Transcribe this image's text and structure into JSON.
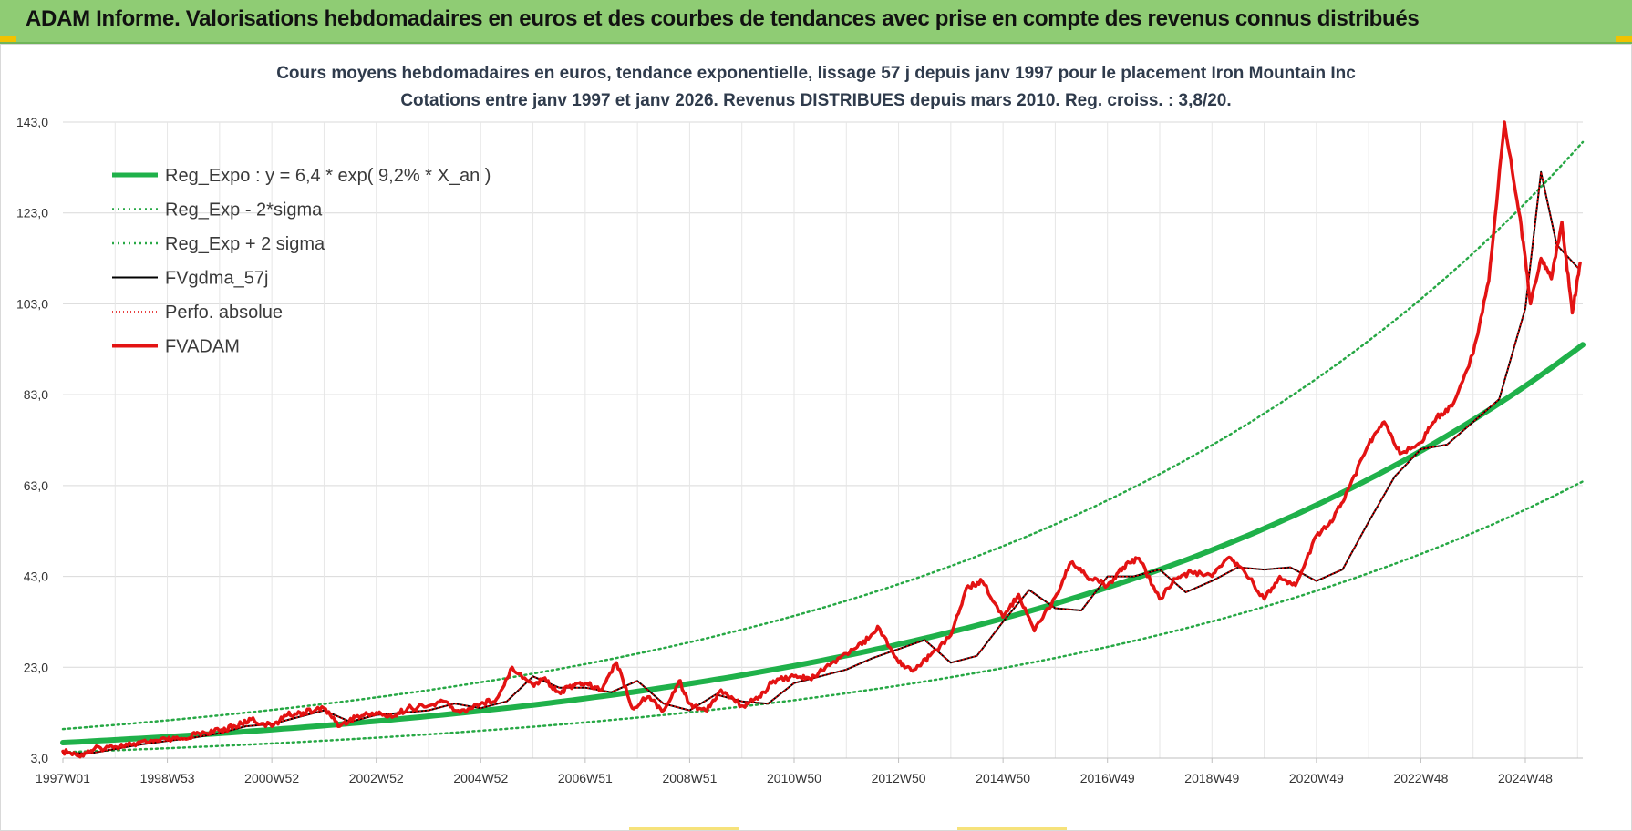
{
  "header": {
    "title": "ADAM Informe. Valorisations hebdomadaires en euros et des courbes de tendances avec prise en compte des revenus connus distribués"
  },
  "colors": {
    "header_bg": "#8fcc74",
    "reg": "#1fb14a",
    "sigma": "#27a845",
    "fvgdma": "#000000",
    "perfo": "#e00000",
    "fvadam": "#e31313"
  },
  "chart_data": {
    "type": "line",
    "title": "Cours moyens hebdomadaires en euros, tendance exponentielle, lissage 57 j depuis janv 1997 pour le placement Iron Mountain Inc",
    "subtitle": "Cotations entre janv 1997 et janv 2026. Revenus DISTRIBUES depuis mars 2010. Reg. croiss. : 3,8/20.",
    "xlabel": "",
    "ylabel": "",
    "xlim": [
      1997.0,
      2026.1
    ],
    "ylim": [
      3,
      143
    ],
    "y_ticks": [
      "3,0",
      "23,0",
      "43,0",
      "63,0",
      "83,0",
      "103,0",
      "123,0",
      "143,0"
    ],
    "x_ticks": [
      {
        "label": "1997W01",
        "x": 1997.0
      },
      {
        "label": "1998W53",
        "x": 1999.0
      },
      {
        "label": "2000W52",
        "x": 2001.0
      },
      {
        "label": "2002W52",
        "x": 2003.0
      },
      {
        "label": "2004W52",
        "x": 2005.0
      },
      {
        "label": "2006W51",
        "x": 2007.0
      },
      {
        "label": "2008W51",
        "x": 2009.0
      },
      {
        "label": "2010W50",
        "x": 2011.0
      },
      {
        "label": "2012W50",
        "x": 2013.0
      },
      {
        "label": "2014W50",
        "x": 2015.0
      },
      {
        "label": "2016W49",
        "x": 2017.0
      },
      {
        "label": "2018W49",
        "x": 2019.0
      },
      {
        "label": "2020W49",
        "x": 2021.0
      },
      {
        "label": "2022W48",
        "x": 2023.0
      },
      {
        "label": "2024W48",
        "x": 2025.0
      }
    ],
    "grid": true,
    "legend": {
      "placement": "top-left"
    },
    "series": [
      {
        "name": "Reg_Expo : y = 6,4 * exp( 9,2% *  X_an )",
        "style": "thick-solid",
        "color": "#1fb14a",
        "x": [
          1997.0,
          2000,
          2003,
          2006,
          2009,
          2012,
          2015,
          2018,
          2021,
          2023,
          2025,
          2026.1
        ],
        "values": [
          6.4,
          8.4,
          11.1,
          14.7,
          19.5,
          25.6,
          33.8,
          44.6,
          58.8,
          70.6,
          84.9,
          94.0
        ]
      },
      {
        "name": "Reg_Exp - 2*sigma",
        "style": "dotted",
        "color": "#27a845",
        "x": [
          1997.0,
          2000,
          2003,
          2006,
          2009,
          2012,
          2015,
          2018,
          2021,
          2023,
          2025,
          2026.1
        ],
        "values": [
          4.3,
          5.7,
          7.5,
          10.0,
          13.2,
          17.4,
          23.0,
          30.3,
          40.0,
          48.0,
          57.7,
          63.9
        ]
      },
      {
        "name": "Reg_Exp + 2 sigma",
        "style": "dotted",
        "color": "#27a845",
        "x": [
          1997.0,
          2000,
          2003,
          2006,
          2009,
          2012,
          2015,
          2018,
          2021,
          2023,
          2025,
          2026.1
        ],
        "values": [
          9.4,
          12.4,
          16.4,
          21.6,
          28.6,
          37.7,
          49.8,
          65.6,
          86.6,
          103.9,
          124.8,
          138.6
        ]
      },
      {
        "name": "FVgdma_57j",
        "style": "thin-solid",
        "color": "#000000",
        "x": [
          1997.0,
          1997.5,
          1998.0,
          1998.5,
          1999.0,
          1999.5,
          2000.0,
          2000.5,
          2001.0,
          2001.5,
          2002.0,
          2002.5,
          2003.0,
          2003.5,
          2004.0,
          2004.5,
          2005.0,
          2005.5,
          2006.0,
          2006.5,
          2007.0,
          2007.5,
          2008.0,
          2008.5,
          2009.0,
          2009.5,
          2010.0,
          2010.5,
          2011.0,
          2011.5,
          2012.0,
          2012.5,
          2013.0,
          2013.5,
          2014.0,
          2014.5,
          2015.0,
          2015.5,
          2016.0,
          2016.5,
          2017.0,
          2017.5,
          2018.0,
          2018.5,
          2019.0,
          2019.5,
          2020.0,
          2020.5,
          2021.0,
          2021.5,
          2022.0,
          2022.5,
          2023.0,
          2023.5,
          2024.0,
          2024.5,
          2025.0,
          2025.3,
          2025.6,
          2026.0
        ],
        "values": [
          4.2,
          4.0,
          5.0,
          6.0,
          6.8,
          7.5,
          8.5,
          10.0,
          10.5,
          12.0,
          13.5,
          11.0,
          12.5,
          13.0,
          13.5,
          15.0,
          14.0,
          15.5,
          21.0,
          18.5,
          18.5,
          17.5,
          20.0,
          15.0,
          13.5,
          17.0,
          15.5,
          15.0,
          19.5,
          21.0,
          22.5,
          25.0,
          27.0,
          29.0,
          24.0,
          25.5,
          33.0,
          40.0,
          36.0,
          35.5,
          43.0,
          43.0,
          44.5,
          39.5,
          42.0,
          45.0,
          44.5,
          45.0,
          42.0,
          44.5,
          55.0,
          65.0,
          71.0,
          72.0,
          77.0,
          82.0,
          102.0,
          132.0,
          116.0,
          111.0
        ]
      },
      {
        "name": "Perfo. absolue",
        "style": "red-dotted",
        "color": "#e00000",
        "x": [
          1997.0,
          1997.5,
          1998.0,
          1998.5,
          1999.0,
          1999.5,
          2000.0,
          2000.5,
          2001.0,
          2001.5,
          2002.0,
          2002.5,
          2003.0,
          2003.5,
          2004.0,
          2004.5,
          2005.0,
          2005.5,
          2006.0,
          2006.5,
          2007.0,
          2007.5,
          2008.0,
          2008.5,
          2009.0,
          2009.5,
          2010.0,
          2010.5,
          2011.0,
          2011.5,
          2012.0,
          2012.5,
          2013.0,
          2013.5,
          2014.0,
          2014.5,
          2015.0,
          2015.5,
          2016.0,
          2016.5,
          2017.0,
          2017.5,
          2018.0,
          2018.5,
          2019.0,
          2019.5,
          2020.0,
          2020.5,
          2021.0,
          2021.5,
          2022.0,
          2022.5,
          2023.0,
          2023.5,
          2024.0,
          2024.5,
          2025.0,
          2025.3,
          2025.6,
          2026.0
        ],
        "values": [
          4.2,
          4.0,
          5.0,
          6.0,
          6.8,
          7.5,
          8.5,
          10.0,
          10.5,
          12.0,
          13.5,
          11.0,
          12.5,
          13.0,
          13.5,
          15.0,
          14.0,
          15.5,
          21.0,
          18.5,
          18.5,
          17.5,
          20.0,
          15.0,
          13.5,
          17.0,
          15.5,
          15.0,
          19.5,
          21.0,
          22.5,
          25.0,
          27.0,
          29.0,
          24.0,
          25.5,
          33.0,
          40.0,
          36.0,
          35.5,
          43.0,
          43.0,
          44.5,
          39.5,
          42.0,
          45.0,
          44.5,
          45.0,
          42.0,
          44.5,
          55.0,
          65.0,
          71.0,
          72.0,
          77.0,
          82.0,
          102.0,
          132.0,
          116.0,
          111.0
        ]
      },
      {
        "name": "FVADAM",
        "style": "thick-red",
        "color": "#e31313",
        "x": [
          1997.0,
          1997.3,
          1997.6,
          1998.0,
          1998.3,
          1998.6,
          1999.0,
          1999.3,
          1999.6,
          2000.0,
          2000.3,
          2000.6,
          2001.0,
          2001.3,
          2001.6,
          2002.0,
          2002.3,
          2002.6,
          2003.0,
          2003.3,
          2003.6,
          2004.0,
          2004.3,
          2004.6,
          2005.0,
          2005.3,
          2005.6,
          2006.0,
          2006.2,
          2006.5,
          2006.8,
          2007.0,
          2007.3,
          2007.6,
          2007.9,
          2008.2,
          2008.5,
          2008.8,
          2009.0,
          2009.3,
          2009.6,
          2010.0,
          2010.3,
          2010.6,
          2011.0,
          2011.3,
          2011.6,
          2012.0,
          2012.3,
          2012.6,
          2013.0,
          2013.3,
          2013.6,
          2014.0,
          2014.3,
          2014.6,
          2015.0,
          2015.3,
          2015.6,
          2016.0,
          2016.3,
          2016.6,
          2017.0,
          2017.3,
          2017.6,
          2018.0,
          2018.3,
          2018.6,
          2019.0,
          2019.3,
          2019.6,
          2020.0,
          2020.3,
          2020.6,
          2021.0,
          2021.3,
          2021.6,
          2022.0,
          2022.3,
          2022.6,
          2023.0,
          2023.3,
          2023.6,
          2024.0,
          2024.3,
          2024.6,
          2024.9,
          2025.1,
          2025.3,
          2025.5,
          2025.7,
          2025.9,
          2026.05
        ],
        "values": [
          4.5,
          3.5,
          5.0,
          5.5,
          6.0,
          6.5,
          7.0,
          7.2,
          8.5,
          9.0,
          10.0,
          11.5,
          10.0,
          12.5,
          13.0,
          14.0,
          10.0,
          12.0,
          13.0,
          12.0,
          14.0,
          14.5,
          15.5,
          13.0,
          15.0,
          16.0,
          23.0,
          19.0,
          20.5,
          17.5,
          19.0,
          19.5,
          18.0,
          24.0,
          14.0,
          16.5,
          13.5,
          20.0,
          15.0,
          13.5,
          18.0,
          14.5,
          16.0,
          20.0,
          21.0,
          20.5,
          23.0,
          26.0,
          28.0,
          32.0,
          24.0,
          22.5,
          25.5,
          30.0,
          40.5,
          42.0,
          34.0,
          39.0,
          31.0,
          38.5,
          46.0,
          43.0,
          41.0,
          45.0,
          47.0,
          38.0,
          42.5,
          44.0,
          43.0,
          47.0,
          44.5,
          38.0,
          43.0,
          41.0,
          52.0,
          55.0,
          62.0,
          72.0,
          77.0,
          70.0,
          72.5,
          78.0,
          80.5,
          92.0,
          108.0,
          143.0,
          122.0,
          103.0,
          113.0,
          108.5,
          121.0,
          101.0,
          112.0
        ]
      }
    ]
  }
}
